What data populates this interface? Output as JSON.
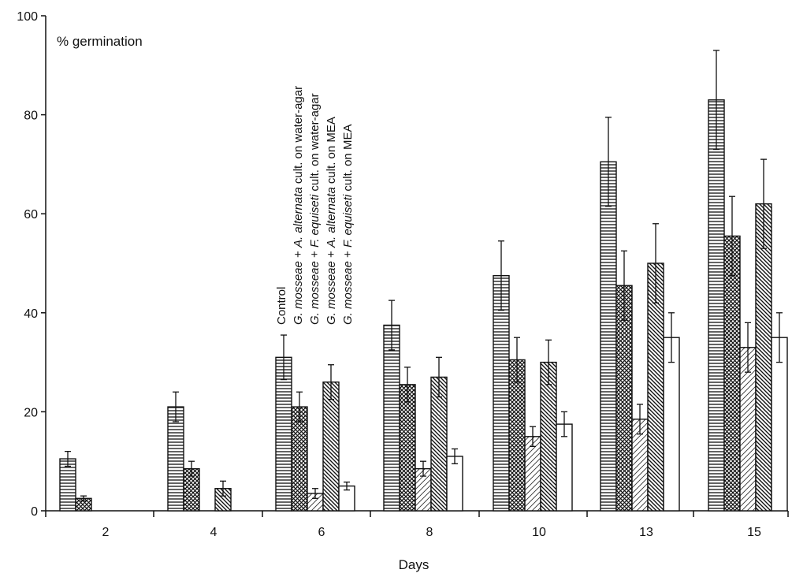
{
  "chart_data": {
    "type": "bar",
    "ylabel": "% germination",
    "xlabel": "Days",
    "ylim": [
      0,
      100
    ],
    "yticks": [
      0,
      20,
      40,
      60,
      80,
      100
    ],
    "categories": [
      "2",
      "4",
      "6",
      "8",
      "10",
      "13",
      "15"
    ],
    "legend_parts": [
      [
        {
          "t": "Control",
          "i": false
        }
      ],
      [
        {
          "t": "G. mosseae",
          "i": true
        },
        {
          "t": " + ",
          "i": false
        },
        {
          "t": "A. alternata",
          "i": true
        },
        {
          "t": " cult. on water-agar",
          "i": false
        }
      ],
      [
        {
          "t": "G. mosseae",
          "i": true
        },
        {
          "t": " + ",
          "i": false
        },
        {
          "t": "F. equiseti",
          "i": true
        },
        {
          "t": " cult. on water-agar",
          "i": false
        }
      ],
      [
        {
          "t": "G. mosseae",
          "i": true
        },
        {
          "t": " + ",
          "i": false
        },
        {
          "t": "A. alternata",
          "i": true
        },
        {
          "t": " cult. on MEA",
          "i": false
        }
      ],
      [
        {
          "t": "G. mosseae",
          "i": true
        },
        {
          "t": " + ",
          "i": false
        },
        {
          "t": "F. equiseti",
          "i": true
        },
        {
          "t": " cult. on MEA",
          "i": false
        }
      ]
    ],
    "series": [
      {
        "name": "Control",
        "pattern": "horizontal-lines",
        "values": [
          10.5,
          21,
          31,
          37.5,
          47.5,
          70.5,
          83
        ],
        "errors": [
          1.5,
          3,
          4.5,
          5,
          7,
          9,
          10
        ]
      },
      {
        "name": "G. mosseae + A. alternata cult. on water-agar",
        "pattern": "crosshatch",
        "values": [
          2.5,
          8.5,
          21,
          25.5,
          30.5,
          45.5,
          55.5
        ],
        "errors": [
          0.5,
          1.5,
          3,
          3.5,
          4.5,
          7,
          8
        ]
      },
      {
        "name": "G. mosseae + F. equiseti cult. on water-agar",
        "pattern": "light-diagonal",
        "values": [
          0,
          0,
          3.5,
          8.5,
          15,
          18.5,
          33
        ],
        "errors": [
          0,
          0,
          1,
          1.5,
          2,
          3,
          5
        ]
      },
      {
        "name": "G. mosseae + A. alternata cult. on MEA",
        "pattern": "dense-diagonal",
        "values": [
          0,
          4.5,
          26,
          27,
          30,
          50,
          62
        ],
        "errors": [
          0,
          1.5,
          3.5,
          4,
          4.5,
          8,
          9
        ]
      },
      {
        "name": "G. mosseae + F. equiseti cult. on MEA",
        "pattern": "blank",
        "values": [
          0,
          0,
          5,
          11,
          17.5,
          35,
          35
        ],
        "errors": [
          0,
          0,
          0.8,
          1.5,
          2.5,
          5,
          5
        ]
      }
    ],
    "grid": false
  }
}
